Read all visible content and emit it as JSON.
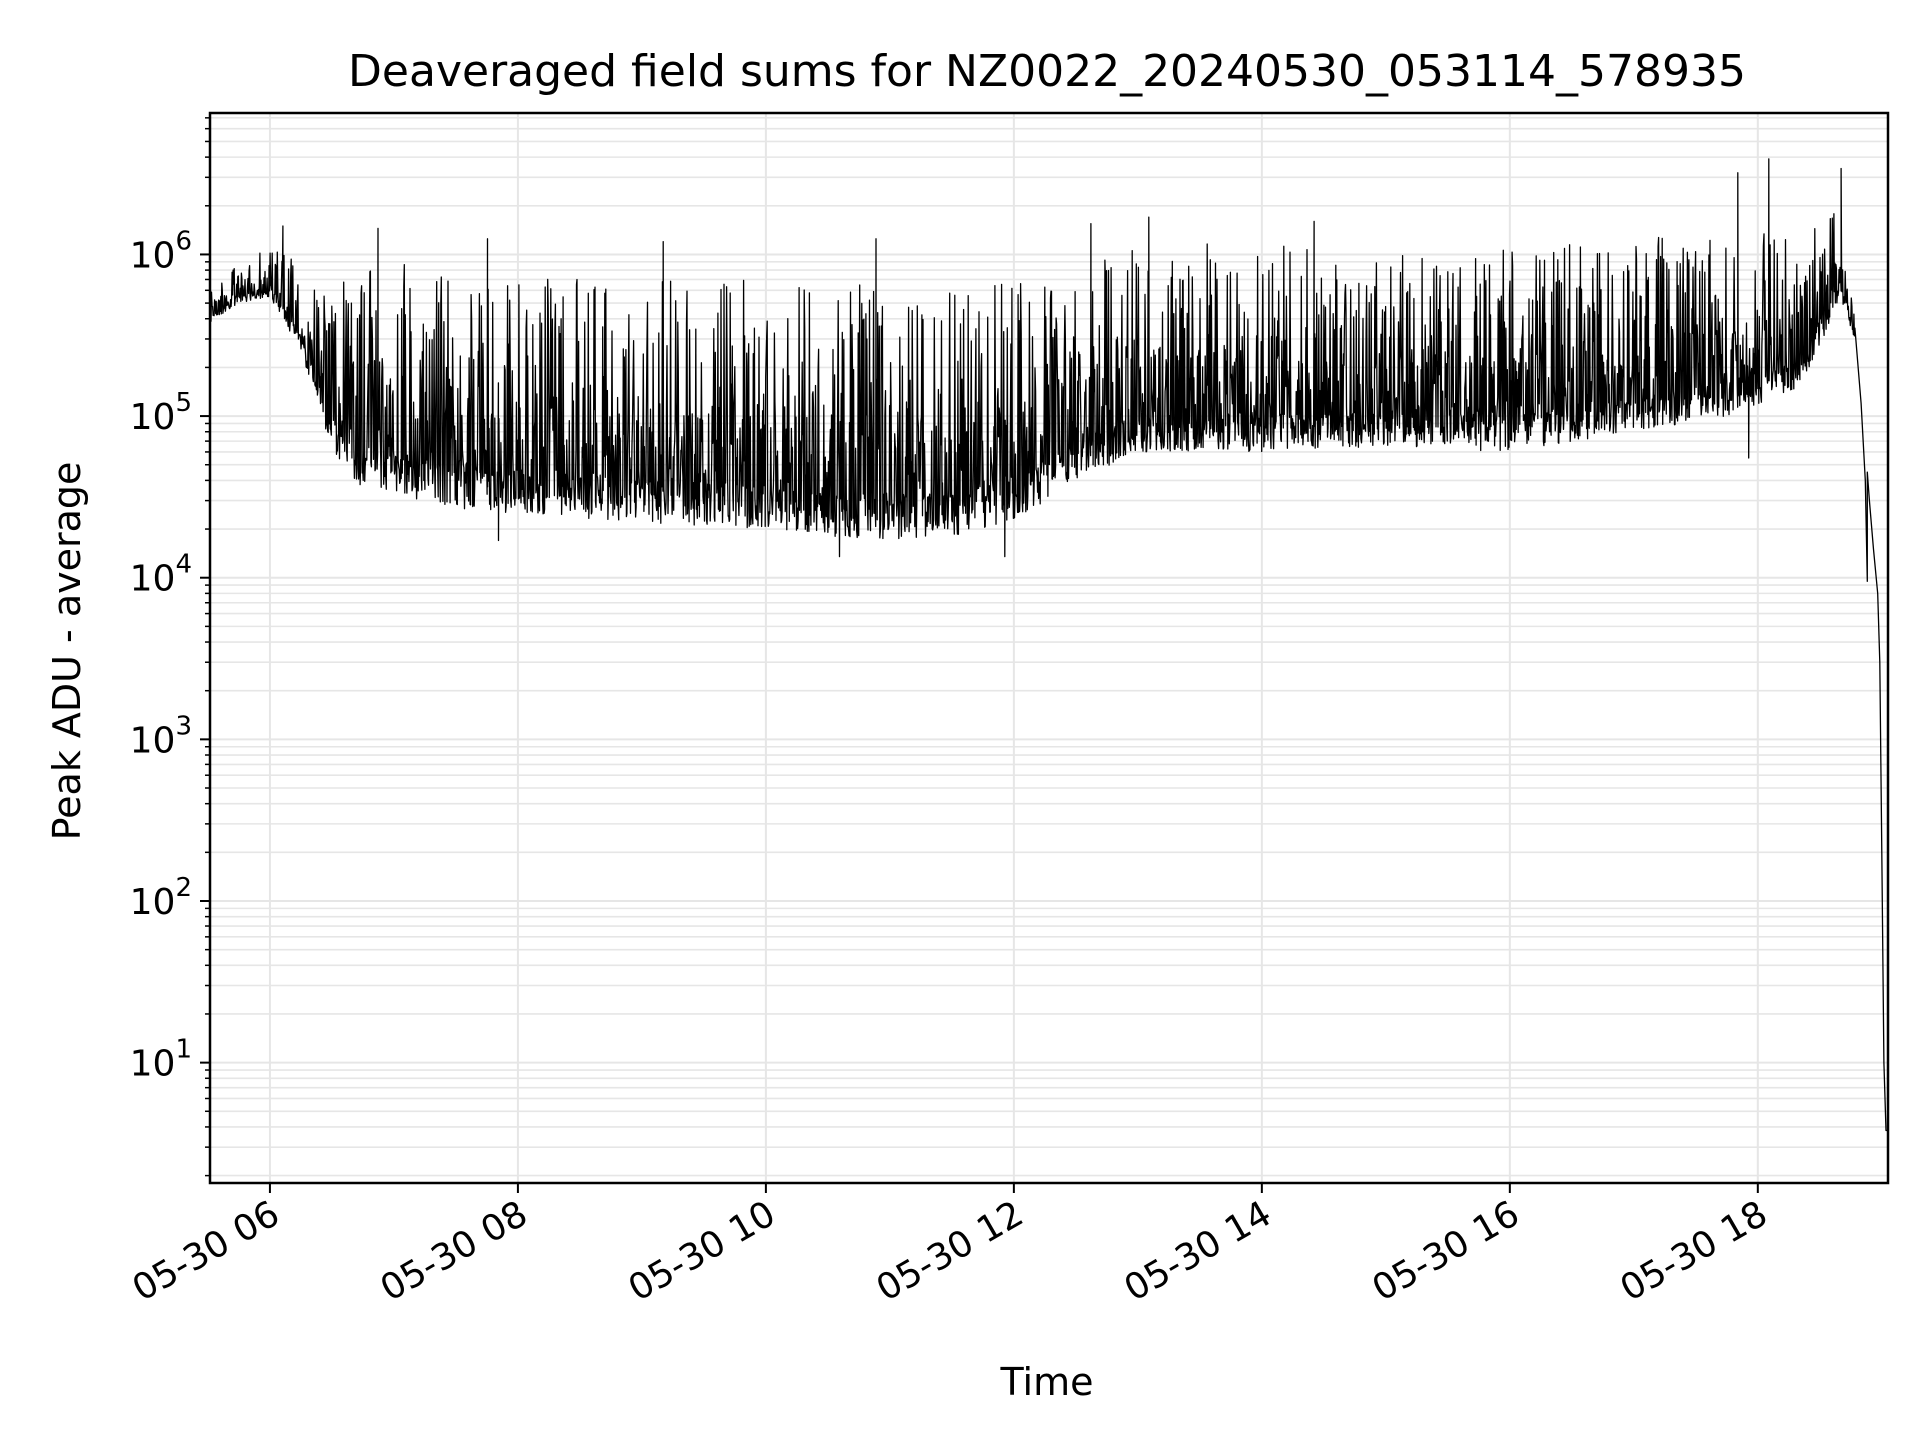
{
  "chart_data": {
    "type": "line",
    "title": "Deaveraged field sums for NZ0022_20240530_053114_578935",
    "xlabel": "Time",
    "ylabel": "Peak ADU - average",
    "y_scale": "log",
    "grid": true,
    "line_color": "#000000",
    "grid_color": "#e6e6e6",
    "x_range": [
      "2024-05-30 05:31",
      "2024-05-30 19:03"
    ],
    "y_range": [
      1.8,
      7500000
    ],
    "x_ticks": [
      {
        "value": "2024-05-30 06:00",
        "label": "05-30 06"
      },
      {
        "value": "2024-05-30 08:00",
        "label": "05-30 08"
      },
      {
        "value": "2024-05-30 10:00",
        "label": "05-30 10"
      },
      {
        "value": "2024-05-30 12:00",
        "label": "05-30 12"
      },
      {
        "value": "2024-05-30 14:00",
        "label": "05-30 14"
      },
      {
        "value": "2024-05-30 16:00",
        "label": "05-30 16"
      },
      {
        "value": "2024-05-30 18:00",
        "label": "05-30 18"
      }
    ],
    "y_ticks": [
      {
        "value": 10,
        "base": "10",
        "exp": "1"
      },
      {
        "value": 100,
        "base": "10",
        "exp": "2"
      },
      {
        "value": 1000,
        "base": "10",
        "exp": "3"
      },
      {
        "value": 10000,
        "base": "10",
        "exp": "4"
      },
      {
        "value": 100000,
        "base": "10",
        "exp": "5"
      },
      {
        "value": 1000000,
        "base": "10",
        "exp": "6"
      }
    ],
    "series": [
      {
        "profile": [
          {
            "t": "2024-05-30 05:31",
            "low": 380000,
            "high": 600000
          },
          {
            "t": "2024-05-30 05:45",
            "low": 500000,
            "high": 900000
          },
          {
            "t": "2024-05-30 06:00",
            "low": 550000,
            "high": 1200000
          },
          {
            "t": "2024-05-30 06:15",
            "low": 250000,
            "high": 900000
          },
          {
            "t": "2024-05-30 06:30",
            "low": 60000,
            "high": 700000
          },
          {
            "t": "2024-05-30 06:45",
            "low": 35000,
            "high": 800000
          },
          {
            "t": "2024-05-30 07:00",
            "low": 33000,
            "high": 900000
          },
          {
            "t": "2024-05-30 07:30",
            "low": 27000,
            "high": 900000
          },
          {
            "t": "2024-05-30 08:00",
            "low": 25000,
            "high": 800000
          },
          {
            "t": "2024-05-30 09:00",
            "low": 22000,
            "high": 700000
          },
          {
            "t": "2024-05-30 10:00",
            "low": 20000,
            "high": 700000
          },
          {
            "t": "2024-05-30 10:45",
            "low": 17000,
            "high": 700000
          },
          {
            "t": "2024-05-30 11:30",
            "low": 18000,
            "high": 600000
          },
          {
            "t": "2024-05-30 12:00",
            "low": 22000,
            "high": 700000
          },
          {
            "t": "2024-05-30 12:30",
            "low": 40000,
            "high": 900000
          },
          {
            "t": "2024-05-30 13:00",
            "low": 60000,
            "high": 1200000
          },
          {
            "t": "2024-05-30 14:00",
            "low": 60000,
            "high": 1200000
          },
          {
            "t": "2024-05-30 15:00",
            "low": 65000,
            "high": 1100000
          },
          {
            "t": "2024-05-30 16:00",
            "low": 60000,
            "high": 1100000
          },
          {
            "t": "2024-05-30 17:00",
            "low": 80000,
            "high": 1200000
          },
          {
            "t": "2024-05-30 17:45",
            "low": 100000,
            "high": 1600000
          },
          {
            "t": "2024-05-30 18:20",
            "low": 150000,
            "high": 1200000
          },
          {
            "t": "2024-05-30 18:40",
            "low": 500000,
            "high": 2200000
          },
          {
            "t": "2024-05-30 18:47",
            "low": 300000,
            "high": 700000
          }
        ],
        "spikes": [
          {
            "t": "2024-05-30 06:06",
            "value": 1500000
          },
          {
            "t": "2024-05-30 06:52",
            "value": 1450000
          },
          {
            "t": "2024-05-30 07:45",
            "value": 1250000
          },
          {
            "t": "2024-05-30 09:10",
            "value": 1200000
          },
          {
            "t": "2024-05-30 10:53",
            "value": 1250000
          },
          {
            "t": "2024-05-30 12:37",
            "value": 1550000
          },
          {
            "t": "2024-05-30 13:05",
            "value": 1700000
          },
          {
            "t": "2024-05-30 14:25",
            "value": 1600000
          },
          {
            "t": "2024-05-30 17:50",
            "value": 3200000
          },
          {
            "t": "2024-05-30 18:05",
            "value": 3900000
          },
          {
            "t": "2024-05-30 18:40",
            "value": 3400000
          }
        ],
        "dips": [
          {
            "t": "2024-05-30 07:50",
            "value": 17000
          },
          {
            "t": "2024-05-30 10:35",
            "value": 13500
          },
          {
            "t": "2024-05-30 11:55",
            "value": 13500
          },
          {
            "t": "2024-05-30 17:55",
            "value": 55000
          }
        ],
        "decay": [
          {
            "t": "2024-05-30 18:47",
            "value": 350000
          },
          {
            "t": "2024-05-30 18:50",
            "value": 120000
          },
          {
            "t": "2024-05-30 18:52",
            "value": 40000
          },
          {
            "t": "2024-05-30 18:53",
            "value": 9500
          },
          {
            "t": "2024-05-30 18:53",
            "value": 45000
          },
          {
            "t": "2024-05-30 18:54",
            "value": 30000
          },
          {
            "t": "2024-05-30 18:56",
            "value": 15000
          },
          {
            "t": "2024-05-30 18:58",
            "value": 8000
          },
          {
            "t": "2024-05-30 18:59",
            "value": 3000
          },
          {
            "t": "2024-05-30 19:00",
            "value": 200
          },
          {
            "t": "2024-05-30 19:01",
            "value": 10
          },
          {
            "t": "2024-05-30 19:02",
            "value": 3.8
          },
          {
            "t": "2024-05-30 19:03",
            "value": 3.8
          }
        ]
      }
    ]
  }
}
